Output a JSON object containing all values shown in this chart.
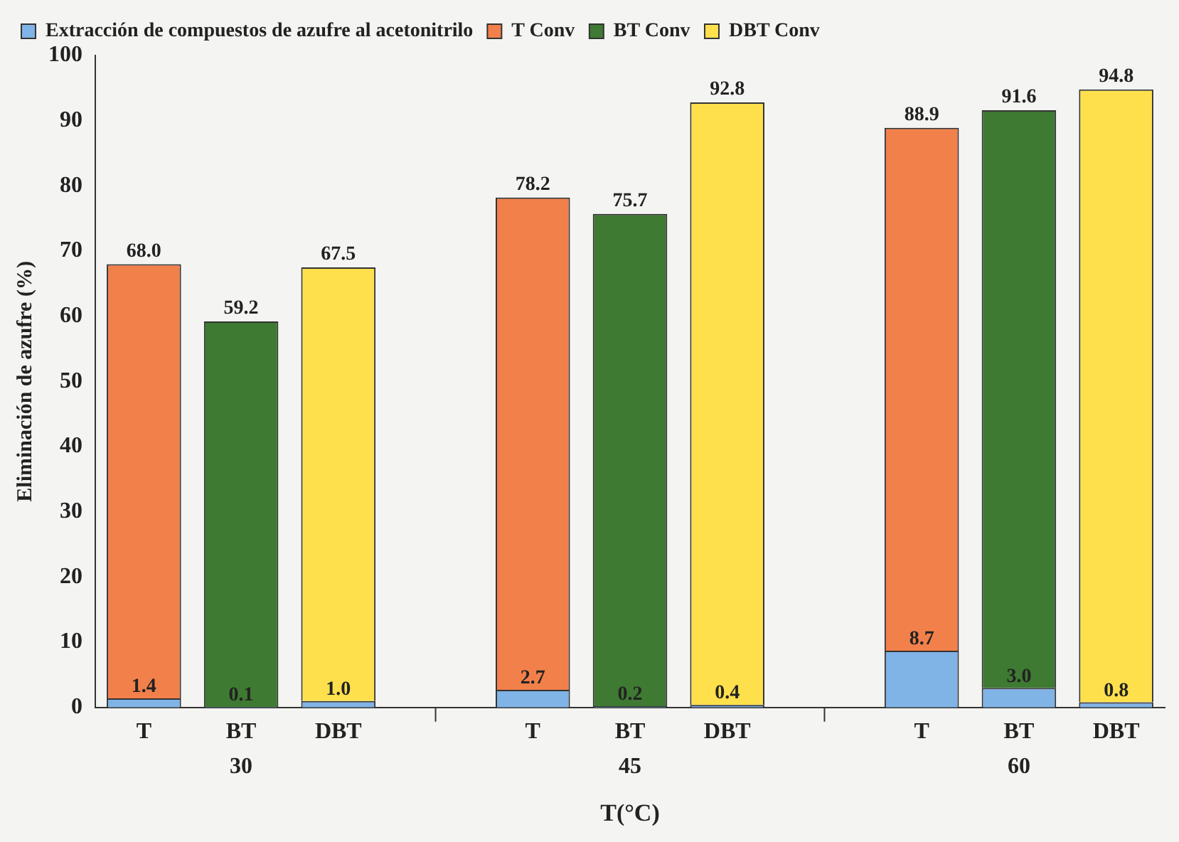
{
  "chart_data": {
    "type": "bar",
    "stacked": true,
    "categories": [
      "T",
      "BT",
      "DBT",
      null,
      "T",
      "BT",
      "DBT",
      null,
      "T",
      "BT",
      "DBT"
    ],
    "series": [
      {
        "name": "Extracción de compuestos de azufre al acetonitrilo",
        "color": "#80b3e6",
        "values": [
          1.4,
          0.1,
          1.0,
          null,
          2.7,
          0.2,
          0.4,
          null,
          8.7,
          3.0,
          0.8
        ],
        "value_labels": [
          "1.4",
          "0.1",
          "1.0",
          null,
          "2.7",
          "0.2",
          "0.4",
          null,
          "8.7",
          "3.0",
          "0.8"
        ]
      },
      {
        "name": "T Conv",
        "color": "#f2804a",
        "values": [
          66.6,
          null,
          null,
          null,
          75.5,
          null,
          null,
          null,
          80.2,
          null,
          null
        ]
      },
      {
        "name": "BT Conv",
        "color": "#3e7a32",
        "values": [
          null,
          59.1,
          null,
          null,
          null,
          75.5,
          null,
          null,
          null,
          88.6,
          null
        ]
      },
      {
        "name": "DBT Conv",
        "color": "#fde04c",
        "values": [
          null,
          null,
          66.5,
          null,
          null,
          null,
          92.4,
          null,
          null,
          null,
          94.0
        ]
      }
    ],
    "totals": [
      "68.0",
      "59.2",
      "67.5",
      null,
      "78.2",
      "75.7",
      "92.8",
      null,
      "88.9",
      "91.6",
      "94.8"
    ],
    "annotations": [
      "30",
      "45",
      "60"
    ],
    "xlabel": "T(°C)",
    "ylabel": "Eliminación de azufre (%)",
    "ylim": [
      0,
      100
    ],
    "yticks": [
      0,
      10,
      20,
      30,
      40,
      50,
      60,
      70,
      80,
      90,
      100
    ],
    "grid": false,
    "legend": "top"
  }
}
